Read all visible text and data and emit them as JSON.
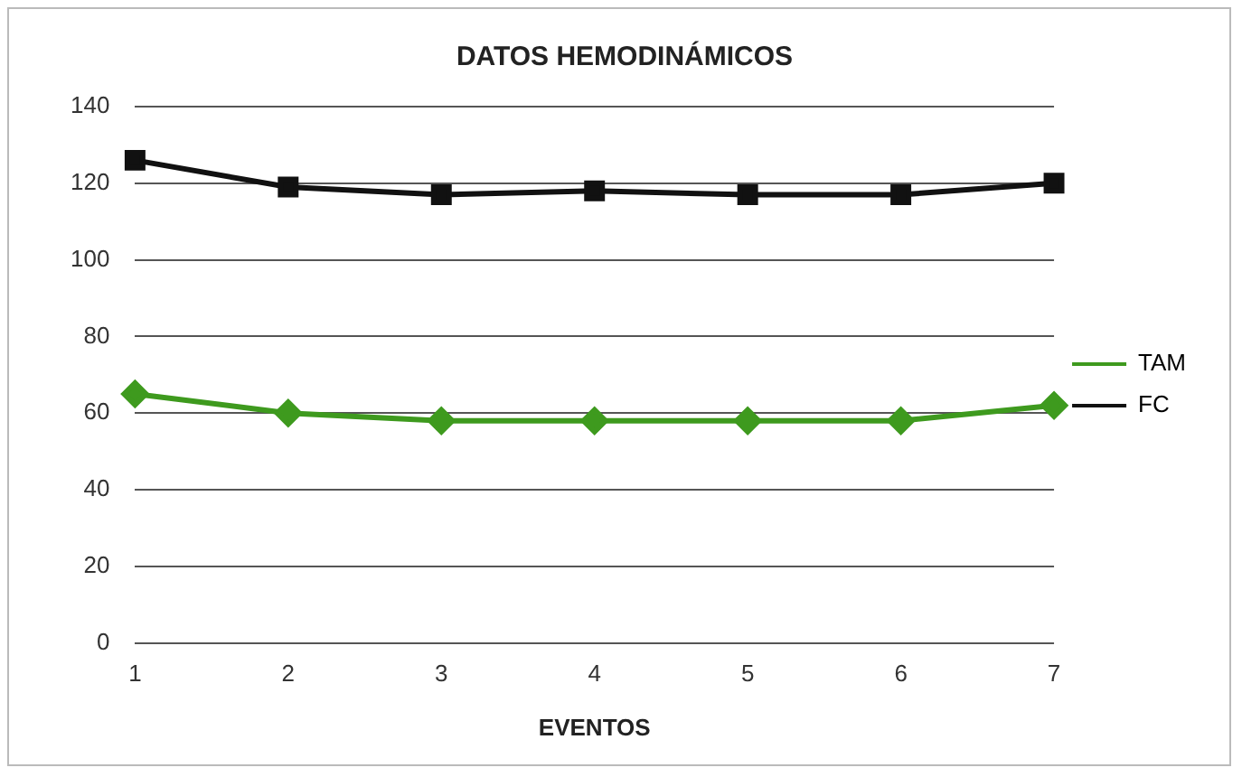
{
  "chart_data": {
    "type": "line",
    "title": "DATOS HEMODINÁMICOS",
    "xlabel": "EVENTOS",
    "categories": [
      "1",
      "2",
      "3",
      "4",
      "5",
      "6",
      "7"
    ],
    "series": [
      {
        "name": "TAM",
        "color": "#3e9a1e",
        "marker": "diamond",
        "values": [
          65,
          60,
          58,
          58,
          58,
          58,
          62
        ]
      },
      {
        "name": "FC",
        "color": "#111111",
        "marker": "square",
        "values": [
          126,
          119,
          117,
          118,
          117,
          117,
          120
        ]
      }
    ],
    "ylim": [
      0,
      140
    ],
    "yticks": [
      0,
      20,
      40,
      60,
      80,
      100,
      120,
      140
    ],
    "grid": "y",
    "legend": "right",
    "line_style": "solid"
  }
}
